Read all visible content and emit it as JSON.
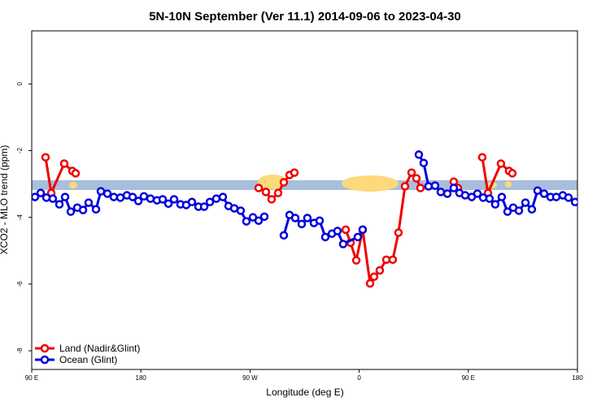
{
  "chart_data": {
    "type": "line",
    "title": "5N-10N September (Ver 11.1)   2014-09-06 to 2023-04-30",
    "x_label": "Longitude (deg E)",
    "y_label": "XCO2 - MLO trend (ppm)",
    "xlim": [
      90,
      540
    ],
    "ylim": [
      1.59,
      -8.56
    ],
    "xticks": [
      {
        "value": 90,
        "label": "90 E"
      },
      {
        "value": 180,
        "label": "180"
      },
      {
        "value": 270,
        "label": "90 W"
      },
      {
        "value": 360,
        "label": "0"
      },
      {
        "value": 450,
        "label": "90 E"
      },
      {
        "value": 540,
        "label": "180"
      }
    ],
    "yticks": [
      0,
      -2,
      -4,
      -6,
      -8
    ],
    "legend": "bottom-left",
    "series": [
      {
        "name": "Land (Nadir&Glint)",
        "color": "#ee0000",
        "x": [
          101.4,
          106.1,
          116.8,
          123.5,
          126.2,
          null,
          277.1,
          283.1,
          287.8,
          293.2,
          297.9,
          302.6,
          306.6,
          null,
          348.9,
          352.9,
          357.6,
          362.9,
          369,
          372.3,
          377,
          382.4,
          387.7,
          392.4,
          397.8,
          403.2,
          407.2,
          410.5,
          null,
          438,
          441.4,
          null,
          461.5,
          466.2,
          476.9,
          483.6,
          486.3
        ],
        "values": [
          -2.2,
          -3.27,
          -2.39,
          -2.61,
          -2.68,
          null,
          -3.12,
          -3.24,
          -3.46,
          -3.27,
          -2.95,
          -2.73,
          -2.66,
          null,
          -4.37,
          -4.76,
          -5.29,
          -4.37,
          -5.98,
          -5.78,
          -5.59,
          -5.27,
          -5.27,
          -4.46,
          -3.07,
          -2.66,
          -2.83,
          -3.12,
          null,
          -2.93,
          -3.12,
          null,
          -2.2,
          -3.27,
          -2.39,
          -2.61,
          -2.68
        ]
      },
      {
        "name": "Ocean (Glint)",
        "color": "#0000dd",
        "x": [
          92.7,
          97.4,
          102.1,
          107.4,
          112.8,
          117.5,
          122.2,
          127.6,
          132.3,
          136.9,
          143,
          147,
          152.4,
          157.7,
          163.1,
          168.5,
          173.2,
          177.9,
          182.5,
          187.9,
          193.3,
          198,
          202.7,
          207.4,
          212.7,
          217.4,
          222.1,
          227.5,
          232.2,
          236.9,
          242.2,
          247.6,
          252.3,
          257,
          262.3,
          267,
          272.4,
          277.1,
          281.8,
          null,
          297.9,
          302.6,
          307.3,
          312.6,
          317.3,
          322.7,
          327.4,
          332.1,
          337.5,
          342.1,
          346.8,
          358.9,
          362.9,
          null,
          409.2,
          413.2,
          417.2,
          422.6,
          427.3,
          432.7,
          438,
          442.7,
          447.4,
          452.8,
          457.5,
          462.2,
          467.5,
          472.2,
          477.6,
          482.3,
          487,
          491.7,
          497.1,
          502.4,
          507.1,
          512.5,
          517.8,
          522.5,
          527.9,
          532.6,
          538
        ],
        "values": [
          -3.39,
          -3.27,
          -3.41,
          -3.44,
          -3.61,
          -3.39,
          -3.83,
          -3.71,
          -3.78,
          -3.56,
          -3.76,
          -3.22,
          -3.29,
          -3.39,
          -3.41,
          -3.34,
          -3.39,
          -3.51,
          -3.37,
          -3.44,
          -3.49,
          -3.46,
          -3.59,
          -3.46,
          -3.61,
          -3.63,
          -3.54,
          -3.68,
          -3.68,
          -3.54,
          -3.44,
          -3.39,
          -3.66,
          -3.73,
          -3.8,
          -4.12,
          -4.0,
          -4.1,
          -3.98,
          null,
          -4.54,
          -3.93,
          -4.02,
          -4.2,
          -4.02,
          -4.17,
          -4.1,
          -4.59,
          -4.49,
          -4.41,
          -4.8,
          -4.59,
          -4.37,
          null,
          -2.12,
          -2.37,
          -3.07,
          -3.05,
          -3.24,
          -3.29,
          -3.12,
          -3.27,
          -3.34,
          -3.39,
          -3.29,
          -3.41,
          -3.44,
          -3.61,
          -3.39,
          -3.83,
          -3.71,
          -3.8,
          -3.56,
          -3.76,
          -3.2,
          -3.29,
          -3.39,
          -3.39,
          -3.34,
          -3.41,
          -3.54
        ]
      }
    ]
  }
}
